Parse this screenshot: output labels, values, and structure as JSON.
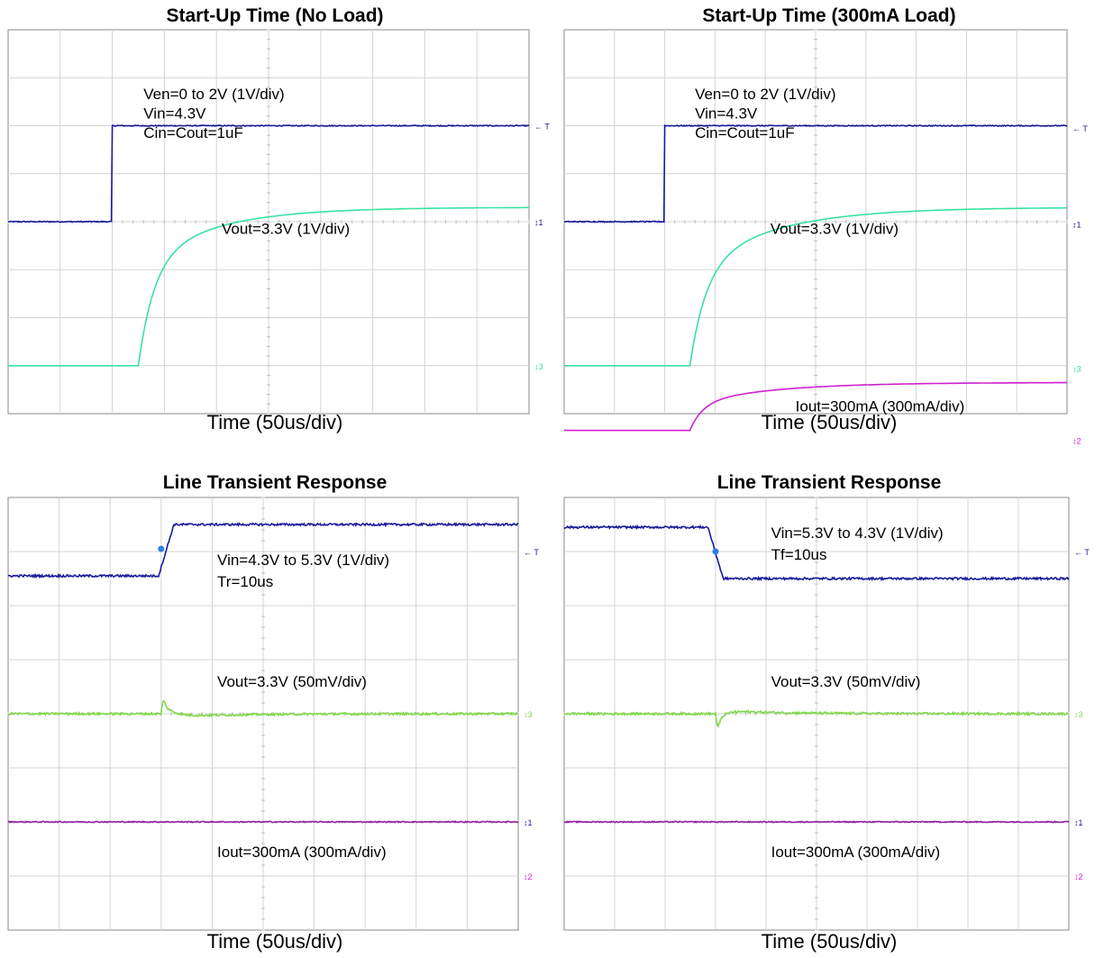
{
  "chart_data": [
    {
      "type": "line",
      "title": "Start-Up Time (No Load)",
      "xlabel": "Time (50us/div)",
      "grid": true,
      "divisions": {
        "x": 10,
        "y": 8
      },
      "annotations": [
        "Ven=0 to 2V (1V/div)",
        "Vin=4.3V",
        "Cin=Cout=1uF",
        "Vout=3.3V (1V/div)"
      ],
      "markers": [
        {
          "label": "T",
          "color": "#1a1a9c",
          "div": 6.0
        },
        {
          "label": "1",
          "color": "#1a1a9c",
          "div": 4.0
        },
        {
          "label": "3",
          "color": "#2ee19a",
          "div": 1.0
        }
      ],
      "series": [
        {
          "color": "#1a1a9c",
          "kind": "step",
          "base_div": 4.0,
          "amp_div": 2.0,
          "t_div": 2.0,
          "noise": 0.01
        },
        {
          "color": "#38e2a0",
          "kind": "exprise",
          "base_div": 1.0,
          "amp_div": 3.3,
          "t_div": 2.5,
          "tau_div": 1.4,
          "a": 0.64,
          "tau2_div": 0.3,
          "noise": 0.0
        }
      ]
    },
    {
      "type": "line",
      "title": "Start-Up Time (300mA Load)",
      "xlabel": "Time (50us/div)",
      "grid": true,
      "divisions": {
        "x": 10,
        "y": 8
      },
      "annotations": [
        "Ven=0 to 2V (1V/div)",
        "Vin=4.3V",
        "Cin=Cout=1uF",
        "Vout=3.3V (1V/div)",
        "Iout=300mA (300mA/div)"
      ],
      "markers": [
        {
          "label": "T",
          "color": "#1a1a9c",
          "div": 5.95
        },
        {
          "label": "1",
          "color": "#1a1a9c",
          "div": 3.95
        },
        {
          "label": "3",
          "color": "#2ee19a",
          "div": 0.95
        },
        {
          "label": "2",
          "color": "#d020d0",
          "div": -0.55
        }
      ],
      "series": [
        {
          "color": "#1a1a9c",
          "kind": "step",
          "base_div": 4.0,
          "amp_div": 2.0,
          "t_div": 2.0,
          "noise": 0.01
        },
        {
          "color": "#38e2a0",
          "kind": "exprise",
          "base_div": 1.0,
          "amp_div": 3.3,
          "t_div": 2.5,
          "tau_div": 1.6,
          "a": 0.6,
          "tau2_div": 0.32,
          "noise": 0.0
        },
        {
          "color": "#d020d0",
          "kind": "exprise",
          "base_div": -0.35,
          "amp_div": 1.0,
          "t_div": 2.5,
          "tau_div": 1.6,
          "a": 0.55,
          "tau2_div": 0.25,
          "noise": 0.0
        }
      ]
    },
    {
      "type": "line",
      "title": "Line Transient Response",
      "xlabel": "Time (50us/div)",
      "grid": true,
      "divisions": {
        "x": 10,
        "y": 8
      },
      "annotations": [
        "Vin=4.3V to 5.3V (1V/div)",
        "Tr=10us",
        "Vout=3.3V (50mV/div)",
        "Iout=300mA (300mA/div)"
      ],
      "markers": [
        {
          "label": "T",
          "color": "#1a1a9c",
          "div": 7.0
        },
        {
          "label": "3",
          "color": "#7fd84a",
          "div": 4.0
        },
        {
          "label": "1",
          "color": "#1a1a9c",
          "div": 2.0
        },
        {
          "label": "2",
          "color": "#d020d0",
          "div": 1.0
        }
      ],
      "trigger_point": {
        "t_div": 3.0,
        "div": 7.05
      },
      "series": [
        {
          "color": "#1a1a9c",
          "kind": "ramp",
          "base_div": 6.55,
          "amp_div": 0.95,
          "t_div": 2.95,
          "ramp_div": 0.3,
          "noise": 0.02
        },
        {
          "color": "#7fd84a",
          "kind": "spike",
          "base_div": 4.0,
          "amp_div": 0.3,
          "t_div": 3.0,
          "decay_div": 0.2,
          "noise": 0.02
        },
        {
          "color": "#9020a0",
          "kind": "flat",
          "base_div": 2.0,
          "noise": 0.01
        }
      ]
    },
    {
      "type": "line",
      "title": "Line Transient Response",
      "xlabel": "Time (50us/div)",
      "grid": true,
      "divisions": {
        "x": 10,
        "y": 8
      },
      "annotations": [
        "Vin=5.3V to 4.3V (1V/div)",
        "Tf=10us",
        "Vout=3.3V (50mV/div)",
        "Iout=300mA (300mA/div)"
      ],
      "markers": [
        {
          "label": "T",
          "color": "#1a1a9c",
          "div": 7.0
        },
        {
          "label": "3",
          "color": "#7fd84a",
          "div": 4.0
        },
        {
          "label": "1",
          "color": "#1a1a9c",
          "div": 2.0
        },
        {
          "label": "2",
          "color": "#d020d0",
          "div": 1.0
        }
      ],
      "trigger_point": {
        "t_div": 3.0,
        "div": 7.0
      },
      "series": [
        {
          "color": "#1a1a9c",
          "kind": "ramp",
          "base_div": 7.45,
          "amp_div": -0.95,
          "t_div": 2.85,
          "ramp_div": 0.3,
          "noise": 0.02
        },
        {
          "color": "#7fd84a",
          "kind": "dip",
          "base_div": 4.0,
          "amp_div": -0.35,
          "t_div": 3.0,
          "decay_div": 0.12,
          "noise": 0.02
        },
        {
          "color": "#9020a0",
          "kind": "flat",
          "base_div": 2.0,
          "noise": 0.01
        }
      ]
    }
  ]
}
